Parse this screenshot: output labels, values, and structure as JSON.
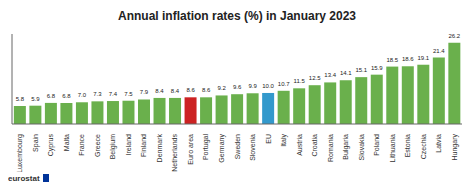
{
  "chart_data": {
    "type": "bar",
    "title": "Annual inflation rates (%) in January 2023",
    "categories": [
      "Luxembourg",
      "Spain",
      "Cyprus",
      "Malta",
      "France",
      "Greece",
      "Belgium",
      "Ireland",
      "Finland",
      "Denmark",
      "Netherlands",
      "Euro area",
      "Portugal",
      "Germany",
      "Sweden",
      "Slovenia",
      "EU",
      "Italy",
      "Austria",
      "Croatia",
      "Romania",
      "Bulgaria",
      "Slovakia",
      "Poland",
      "Lithuania",
      "Estonia",
      "Czechia",
      "Latvia",
      "Hungary"
    ],
    "values": [
      5.8,
      5.9,
      6.8,
      6.8,
      7.0,
      7.3,
      7.4,
      7.5,
      7.9,
      8.4,
      8.4,
      8.6,
      8.6,
      9.2,
      9.6,
      9.9,
      10.0,
      10.7,
      11.5,
      12.5,
      13.4,
      14.1,
      15.1,
      15.9,
      18.5,
      18.6,
      19.1,
      21.4,
      26.2
    ],
    "value_labels": [
      "5.8",
      "5.9",
      "6.8",
      "6.8",
      "7.0",
      "7.3",
      "7.4",
      "7.5",
      "7.9",
      "8.4",
      "8.4",
      "8.6",
      "8.6",
      "9.2",
      "9.6",
      "9.9",
      "10.0",
      "10.7",
      "11.5",
      "12.5",
      "13.4",
      "14.1",
      "15.1",
      "15.9",
      "18.5",
      "18.6",
      "19.1",
      "21.4",
      "26.2"
    ],
    "colors": [
      "#6ab04c",
      "#6ab04c",
      "#6ab04c",
      "#6ab04c",
      "#6ab04c",
      "#6ab04c",
      "#6ab04c",
      "#6ab04c",
      "#6ab04c",
      "#6ab04c",
      "#6ab04c",
      "#cc2222",
      "#6ab04c",
      "#6ab04c",
      "#6ab04c",
      "#6ab04c",
      "#3399cc",
      "#6ab04c",
      "#6ab04c",
      "#6ab04c",
      "#6ab04c",
      "#6ab04c",
      "#6ab04c",
      "#6ab04c",
      "#6ab04c",
      "#6ab04c",
      "#6ab04c",
      "#6ab04c",
      "#6ab04c"
    ],
    "ylim": [
      0,
      29
    ],
    "data_labels": true,
    "tick_labels": "x",
    "annotations": [
      "eurostat"
    ]
  }
}
